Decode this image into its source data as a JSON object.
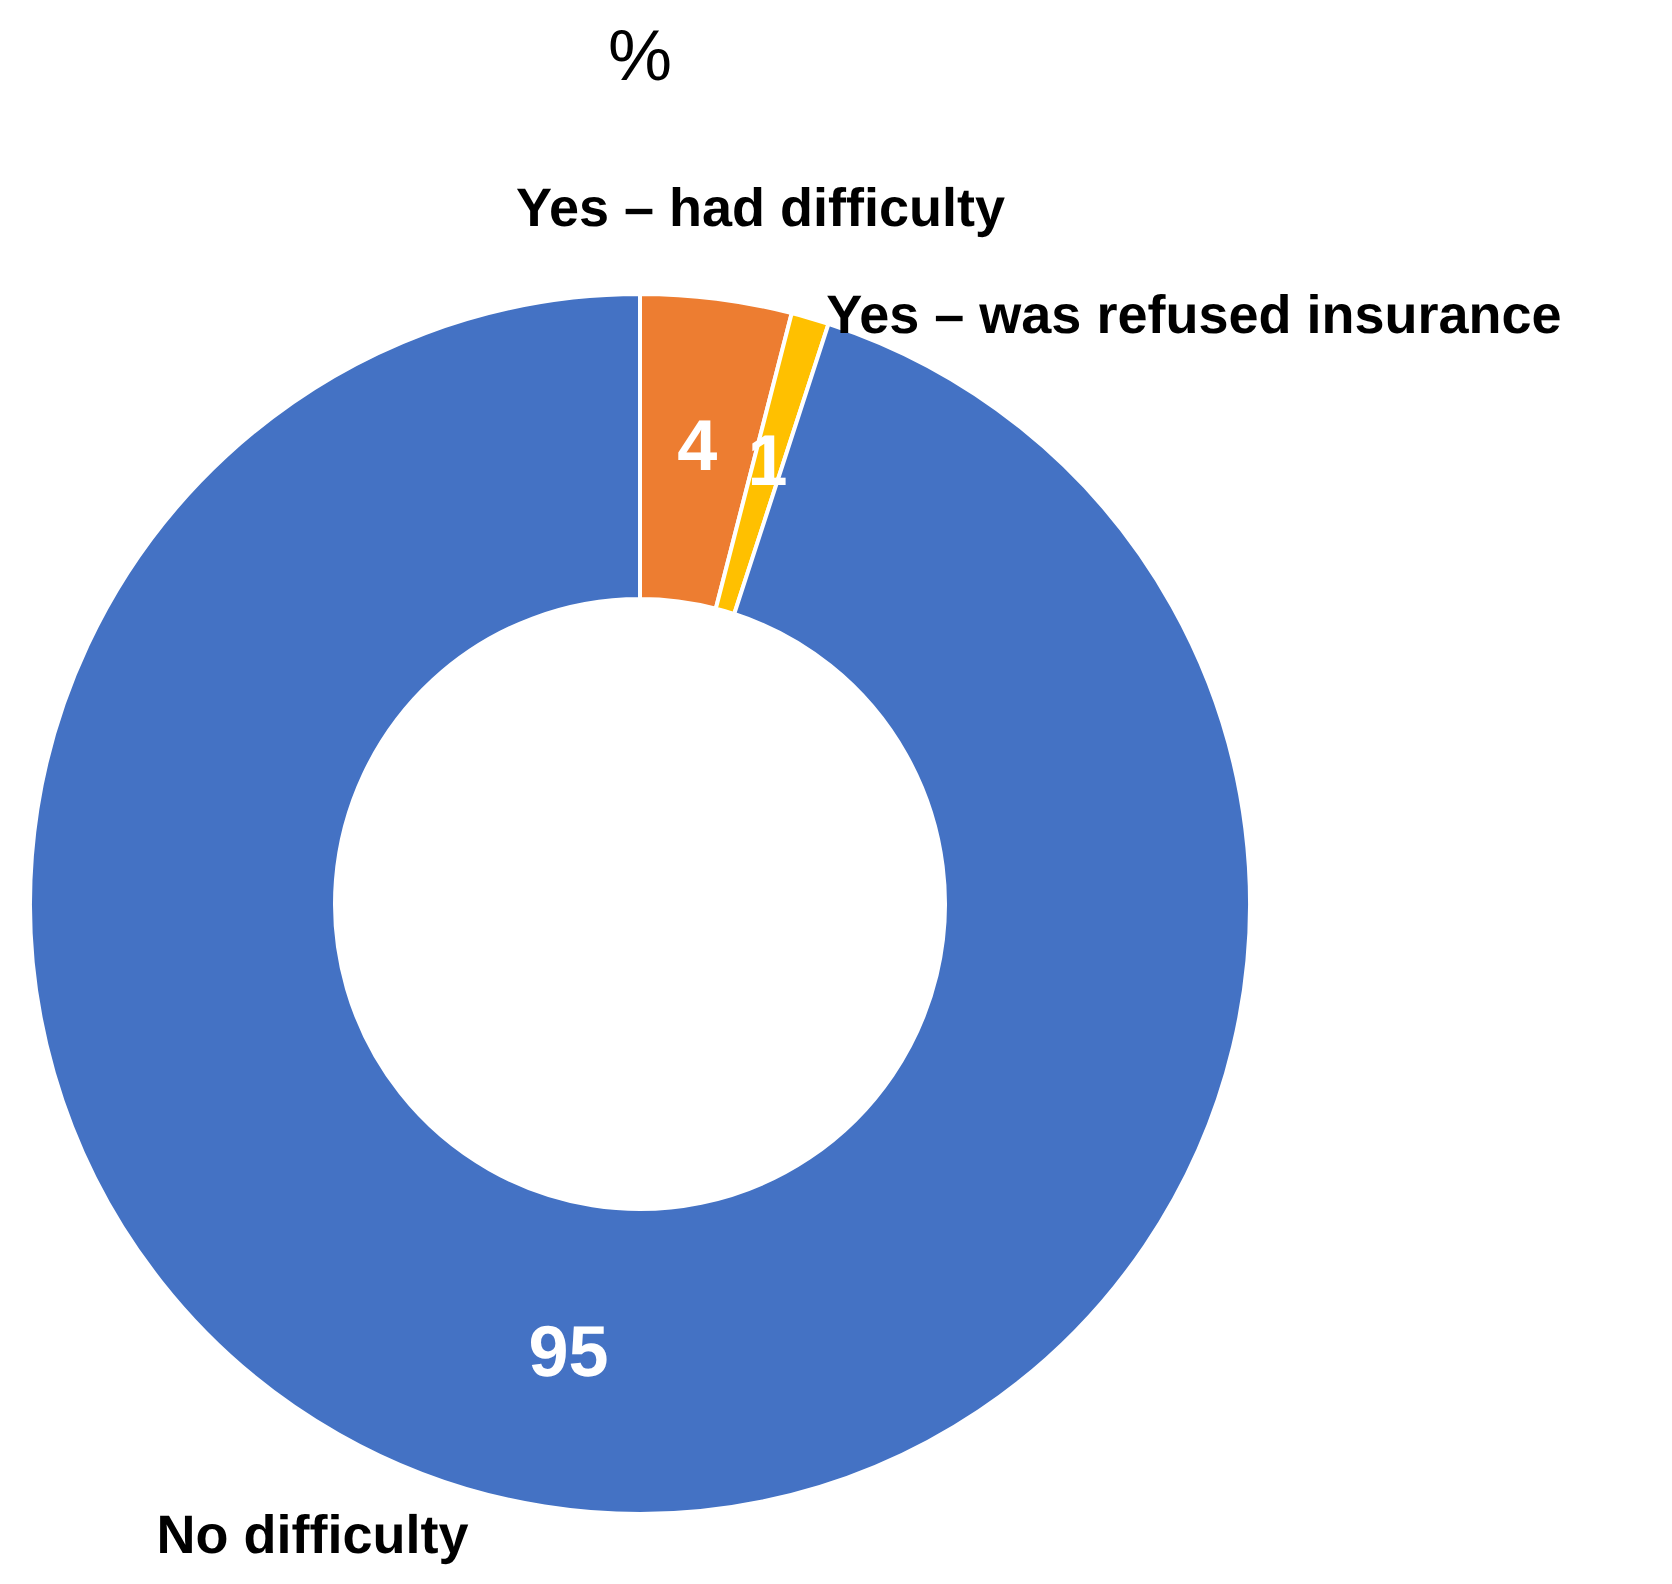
{
  "chart_data": {
    "type": "donut",
    "title": "%",
    "categories": [
      "Yes – had difficulty",
      "Yes – was refused insurance",
      "No difficulty"
    ],
    "values": [
      4,
      1,
      95
    ],
    "colors": [
      "#ed7d31",
      "#ffc000",
      "#4472c4"
    ],
    "data_labels": true,
    "legend": false
  }
}
